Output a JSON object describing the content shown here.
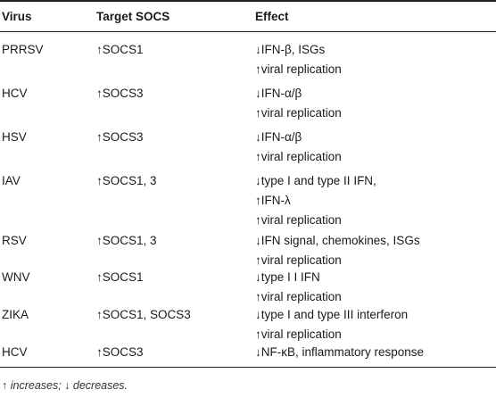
{
  "headers": {
    "virus": "Virus",
    "target": "Target SOCS",
    "effect": "Effect"
  },
  "rows": [
    {
      "virus": "PRRSV",
      "target": "↑SOCS1",
      "effects": [
        "↓IFN-β, ISGs",
        "↑viral replication"
      ]
    },
    {
      "virus": "HCV",
      "target": "↑SOCS3",
      "effects": [
        "↓IFN-α/β",
        "↑viral replication"
      ]
    },
    {
      "virus": "HSV",
      "target": "↑SOCS3",
      "effects": [
        "↓IFN-α/β",
        "↑viral replication"
      ]
    },
    {
      "virus": "IAV",
      "target": "↑SOCS1, 3",
      "effects": [
        "↓type I and type II IFN,",
        "↑IFN-λ",
        "↑viral replication"
      ]
    },
    {
      "virus": "RSV",
      "target": "↑SOCS1, 3",
      "effects": [
        "↓IFN signal, chemokines, ISGs",
        "↑viral replication"
      ]
    },
    {
      "virus": "WNV",
      "target": "↑SOCS1",
      "effects": [
        "↓type I I IFN",
        "↑viral replication"
      ]
    },
    {
      "virus": "ZIKA",
      "target": "↑SOCS1, SOCS3",
      "effects": [
        "↓type I and type III interferon",
        "↑viral replication"
      ]
    },
    {
      "virus": "HCV",
      "target": "↑SOCS3",
      "effects": [
        "↓NF-κB, inflammatory response"
      ]
    }
  ],
  "footnote": "↑ increases; ↓ decreases."
}
